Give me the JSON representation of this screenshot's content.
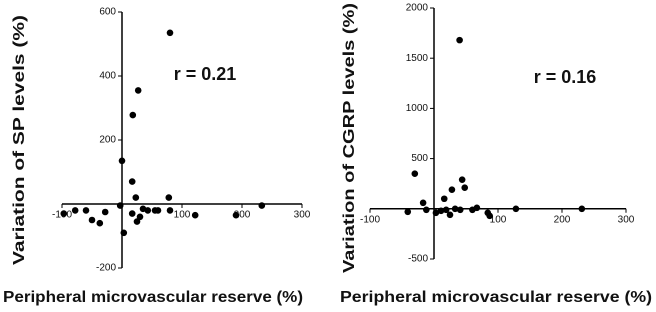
{
  "chart_data": [
    {
      "type": "scatter",
      "annotation": "r = 0.21",
      "x_label": "Peripheral microvascular reserve (%)",
      "y_label": "Variation of SP levels (%)",
      "xlim": [
        -100,
        300
      ],
      "ylim": [
        -200,
        600
      ],
      "xticks": [
        -100,
        100,
        200,
        300
      ],
      "yticks": [
        -200,
        200,
        400,
        600
      ],
      "color": "#000000",
      "x": [
        80,
        27,
        18,
        0,
        17,
        23,
        78,
        -97,
        -78,
        -60,
        -50,
        -37,
        -28,
        -3,
        3,
        17,
        25,
        30,
        35,
        43,
        55,
        60,
        80,
        122,
        190,
        233
      ],
      "values": [
        535,
        355,
        278,
        135,
        70,
        20,
        20,
        -30,
        -20,
        -20,
        -50,
        -60,
        -25,
        -5,
        -90,
        -30,
        -55,
        -40,
        -15,
        -20,
        -20,
        -20,
        -20,
        -35,
        -35,
        -5
      ]
    },
    {
      "type": "scatter",
      "annotation": "r = 0.16",
      "x_label": "Peripheral microvascular reserve (%)",
      "y_label": "Variation of CGRP levels (%)",
      "xlim": [
        -100,
        300
      ],
      "ylim": [
        -500,
        2000
      ],
      "xticks": [
        -100,
        100,
        200,
        300
      ],
      "yticks": [
        -500,
        500,
        1000,
        1500,
        2000
      ],
      "color": "#000000",
      "x": [
        -30,
        40,
        44,
        48,
        28,
        16,
        -17,
        -12,
        3,
        11,
        19,
        25,
        33,
        41,
        60,
        67,
        84,
        87,
        128,
        231,
        -41
      ],
      "values": [
        350,
        1680,
        290,
        210,
        190,
        100,
        60,
        -10,
        -40,
        -20,
        -10,
        -60,
        0,
        -10,
        -10,
        10,
        -40,
        -70,
        0,
        0,
        -30
      ]
    }
  ]
}
